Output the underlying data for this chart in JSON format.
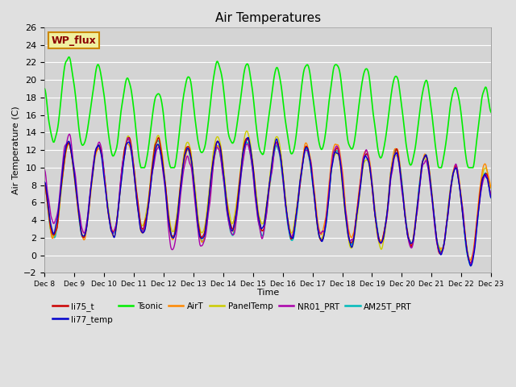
{
  "title": "Air Temperatures",
  "xlabel": "Time",
  "ylabel": "Air Temperature (C)",
  "ylim": [
    -2,
    26
  ],
  "background_color": "#e0e0e0",
  "plot_bg_color": "#d4d4d4",
  "grid_color": "#ffffff",
  "series": {
    "li75_t": {
      "color": "#cc0000",
      "lw": 1.0
    },
    "li77_temp": {
      "color": "#0000cc",
      "lw": 1.0
    },
    "Tsonic": {
      "color": "#00ee00",
      "lw": 1.2
    },
    "AirT": {
      "color": "#ff8800",
      "lw": 1.0
    },
    "PanelTemp": {
      "color": "#cccc00",
      "lw": 1.0
    },
    "NR01_PRT": {
      "color": "#aa00aa",
      "lw": 1.0
    },
    "AM25T_PRT": {
      "color": "#00bbbb",
      "lw": 1.2
    }
  },
  "xtick_labels": [
    "Dec 8",
    "Dec 9",
    "Dec 10",
    "Dec 11",
    "Dec 12",
    "Dec 13",
    "Dec 14",
    "Dec 15",
    "Dec 16",
    "Dec 17",
    "Dec 18",
    "Dec 19",
    "Dec 20",
    "Dec 21",
    "Dec 22",
    "Dec 23"
  ],
  "annotation_text": "WP_flux",
  "annotation_color": "#8b0000",
  "annotation_bg": "#f0f0a0",
  "annotation_border": "#cc8800"
}
